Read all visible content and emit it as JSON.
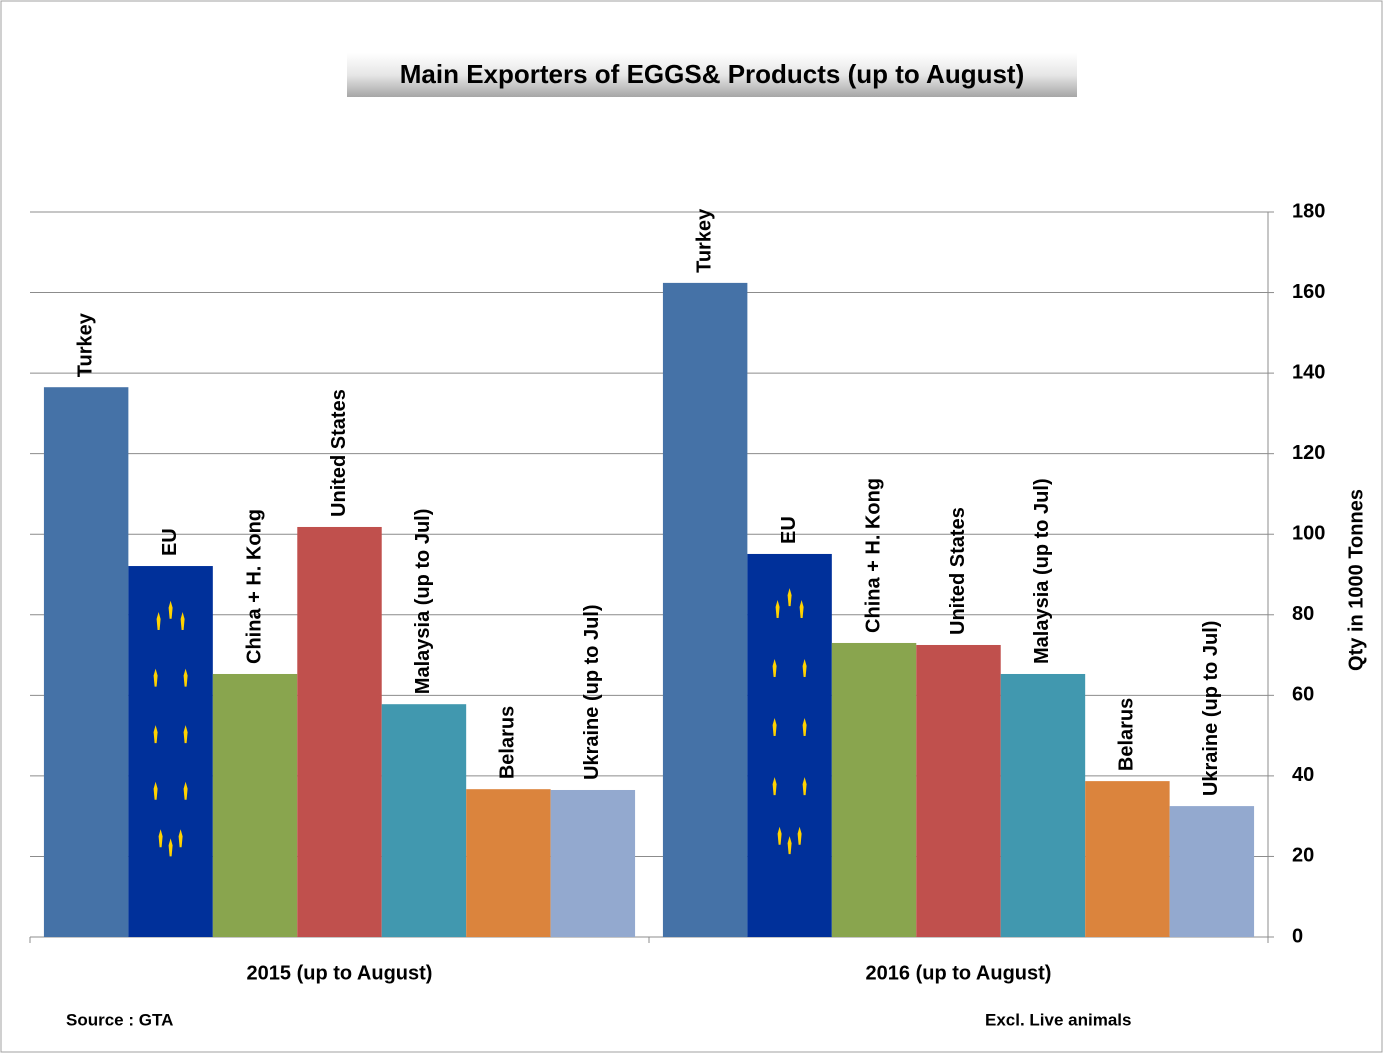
{
  "chart_data": {
    "type": "bar",
    "title": "Main Exporters of EGGS& Products (up to August)",
    "y_axis_label": "Qty in 1000 Tonnes",
    "source": "Source : GTA",
    "note": "Excl. Live animals",
    "categories": [
      "2015 (up to August)",
      "2016 (up to August)"
    ],
    "series": [
      {
        "name": "Turkey",
        "color": "#4572a7",
        "values": [
          136.5,
          162.4
        ]
      },
      {
        "name": "EU",
        "color": "#00309a",
        "values": [
          92.1,
          95.1
        ]
      },
      {
        "name": "China + H. Kong",
        "color": "#89a54e",
        "values": [
          65.3,
          73
        ]
      },
      {
        "name": "United States",
        "color": "#c0504d",
        "values": [
          101.8,
          72.5
        ]
      },
      {
        "name": "Malaysia (up to Jul)",
        "color": "#4198af",
        "values": [
          57.8,
          65.3
        ]
      },
      {
        "name": "Belarus",
        "color": "#db843d",
        "values": [
          36.7,
          38.7
        ]
      },
      {
        "name": "Ukraine (up to Jul)",
        "color": "#93a9cf",
        "values": [
          36.5,
          32.5
        ]
      }
    ],
    "ylim": [
      0,
      180
    ],
    "yticks": [
      0,
      20,
      40,
      60,
      80,
      100,
      120,
      140,
      160,
      180
    ],
    "grid": true
  }
}
